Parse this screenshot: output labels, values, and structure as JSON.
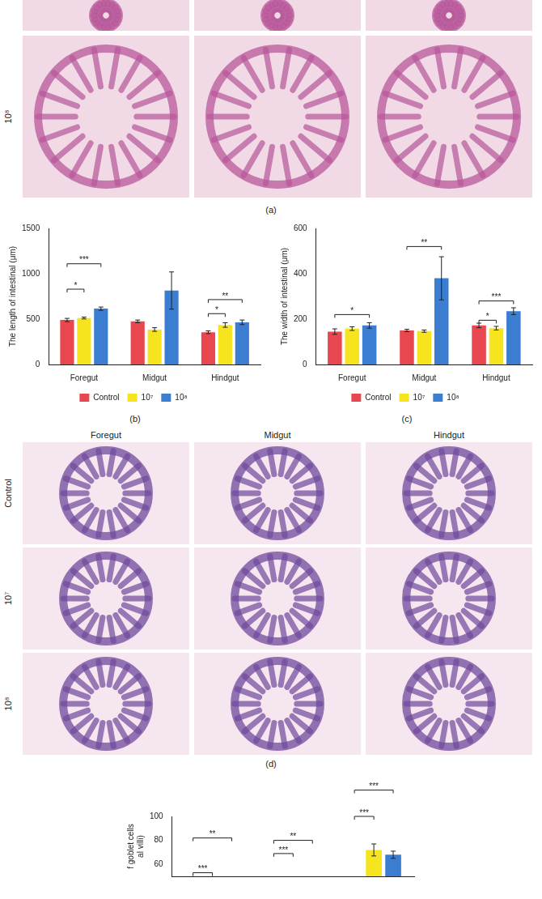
{
  "chart_data": [
    {
      "type": "bar",
      "caption": "(b)",
      "y_label": "The length of intestinal (μm)",
      "categories": [
        "Foregut",
        "Midgut",
        "Hindgut"
      ],
      "series": [
        {
          "name": "Control",
          "color": "#e8474f",
          "values": [
            490,
            475,
            355
          ],
          "errors": [
            18,
            15,
            15
          ]
        },
        {
          "name": "10⁷",
          "color": "#f5e41e",
          "values": [
            512,
            385,
            435
          ],
          "errors": [
            10,
            20,
            25
          ]
        },
        {
          "name": "10⁸",
          "color": "#3b7dd0",
          "values": [
            615,
            815,
            465
          ],
          "errors": [
            18,
            205,
            25
          ]
        }
      ],
      "ylim": [
        0,
        1500
      ],
      "yticks": [
        0,
        500,
        1000,
        1500
      ],
      "grid": false,
      "legend": "bottom",
      "annotations": [
        {
          "category": 0,
          "from": 0,
          "to": 1,
          "y": 830,
          "text": "*"
        },
        {
          "category": 0,
          "from": 0,
          "to": 2,
          "y": 1110,
          "text": "***"
        },
        {
          "category": 2,
          "from": 0,
          "to": 1,
          "y": 560,
          "text": "*"
        },
        {
          "category": 2,
          "from": 0,
          "to": 2,
          "y": 715,
          "text": "**"
        }
      ]
    },
    {
      "type": "bar",
      "caption": "(c)",
      "y_label": "The width of intestinal (μm)",
      "categories": [
        "Foregut",
        "Midgut",
        "Hindgut"
      ],
      "series": [
        {
          "name": "Control",
          "color": "#e8474f",
          "values": [
            145,
            150,
            172
          ],
          "errors": [
            12,
            5,
            10
          ]
        },
        {
          "name": "10⁷",
          "color": "#f5e41e",
          "values": [
            158,
            147,
            160
          ],
          "errors": [
            8,
            5,
            8
          ]
        },
        {
          "name": "10⁸",
          "color": "#3b7dd0",
          "values": [
            172,
            380,
            235
          ],
          "errors": [
            12,
            95,
            15
          ]
        }
      ],
      "ylim": [
        0,
        600
      ],
      "yticks": [
        0,
        200,
        400,
        600
      ],
      "grid": false,
      "legend": "bottom",
      "annotations": [
        {
          "category": 0,
          "from": 0,
          "to": 2,
          "y": 220,
          "text": "*"
        },
        {
          "category": 1,
          "from": 0,
          "to": 2,
          "y": 520,
          "text": "**"
        },
        {
          "category": 2,
          "from": 0,
          "to": 1,
          "y": 195,
          "text": "*"
        },
        {
          "category": 2,
          "from": 0,
          "to": 2,
          "y": 280,
          "text": "***"
        }
      ]
    },
    {
      "type": "bar",
      "y_label": [
        "f goblet cells",
        "al villi)"
      ],
      "categories": [
        null,
        null,
        null
      ],
      "series": [
        {
          "color": "#e8474f",
          "values": [
            null,
            null,
            null
          ],
          "errors": [
            null,
            null,
            null
          ]
        },
        {
          "color": "#f5e41e",
          "values": [
            null,
            null,
            72
          ],
          "errors": [
            null,
            null,
            5
          ]
        },
        {
          "color": "#3b7dd0",
          "values": [
            null,
            null,
            68
          ],
          "errors": [
            null,
            null,
            3
          ]
        }
      ],
      "ylim": [
        50,
        100
      ],
      "yticks": [
        60,
        80,
        100
      ],
      "grid": false,
      "tick_labels": "y",
      "annotations": [
        {
          "category": 0,
          "from": 0,
          "to": 1,
          "y": 53,
          "text": "***"
        },
        {
          "category": 0,
          "from": 0,
          "to": 2,
          "y": 82,
          "text": "**"
        },
        {
          "category": 1,
          "from": 0,
          "to": 1,
          "y": 69,
          "text": "***"
        },
        {
          "category": 1,
          "from": 0,
          "to": 2,
          "y": 80,
          "text": "**"
        },
        {
          "category": 2,
          "from": 0,
          "to": 1,
          "y": 100,
          "text": "***"
        },
        {
          "category": 2,
          "from": 0,
          "to": 2,
          "y": 122,
          "text": "***"
        }
      ]
    }
  ],
  "image_panels": {
    "a": {
      "caption": "(a)",
      "rows": [
        null,
        "10⁸"
      ]
    },
    "d": {
      "caption": "(d)",
      "columns": [
        "Foregut",
        "Midgut",
        "Hindgut"
      ],
      "rows": [
        "Control",
        "10⁷",
        "10⁸"
      ]
    }
  }
}
